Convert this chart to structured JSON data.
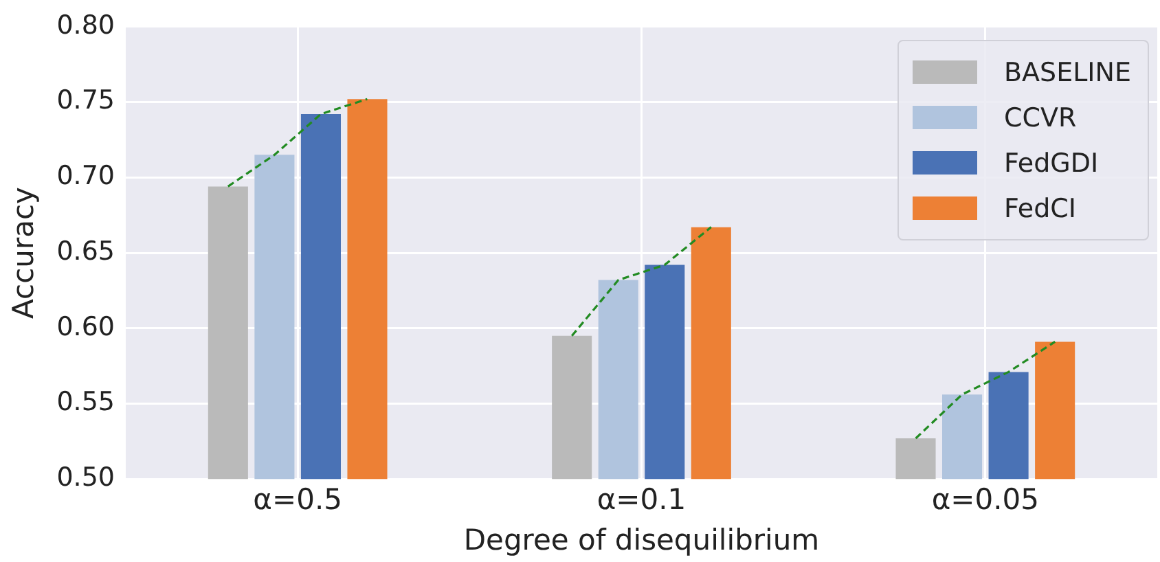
{
  "chart_data": {
    "type": "bar",
    "xlabel": "Degree of disequilibrium",
    "ylabel": "Accuracy",
    "categories": [
      "α=0.5",
      "α=0.1",
      "α=0.05"
    ],
    "series": [
      {
        "name": "BASELINE",
        "color": "#bababa",
        "values": [
          0.694,
          0.595,
          0.527
        ]
      },
      {
        "name": "CCVR",
        "color": "#b0c4de",
        "values": [
          0.715,
          0.632,
          0.556
        ]
      },
      {
        "name": "FedGDI",
        "color": "#4a72b5",
        "values": [
          0.742,
          0.642,
          0.571
        ]
      },
      {
        "name": "FedCI",
        "color": "#ed8035",
        "values": [
          0.752,
          0.667,
          0.591
        ]
      }
    ],
    "ylim": [
      0.5,
      0.8
    ],
    "yticks": [
      {
        "value": 0.5,
        "label": "0.50"
      },
      {
        "value": 0.55,
        "label": "0.55"
      },
      {
        "value": 0.6,
        "label": "0.60"
      },
      {
        "value": 0.65,
        "label": "0.65"
      },
      {
        "value": 0.7,
        "label": "0.70"
      },
      {
        "value": 0.75,
        "label": "0.75"
      },
      {
        "value": 0.8,
        "label": "0.80"
      }
    ],
    "grid": true,
    "legend": "top right"
  }
}
